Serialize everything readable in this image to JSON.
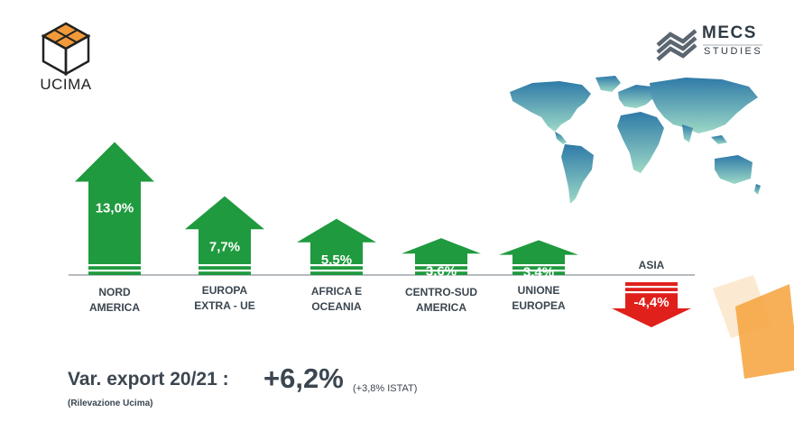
{
  "brand": {
    "ucima": "UCIMA",
    "mecs_title": "MECS",
    "mecs_sub": "STUDIES"
  },
  "colors": {
    "positive": "#1f9a3e",
    "negative": "#e0201b",
    "text": "#3b4650",
    "map_top": "#2f7aa8",
    "map_bottom": "#9dd9c6",
    "accent_orange": "#f6a23b"
  },
  "chart_data": {
    "type": "bar",
    "title": "",
    "xlabel": "",
    "ylabel": "",
    "ylim": [
      -4.4,
      13.0
    ],
    "categories": [
      [
        "NORD",
        "AMERICA"
      ],
      [
        "EUROPA",
        "EXTRA - UE"
      ],
      [
        "AFRICA E",
        "OCEANIA"
      ],
      [
        "CENTRO-SUD",
        "AMERICA"
      ],
      [
        "UNIONE",
        "EUROPEA"
      ],
      [
        "ASIA"
      ]
    ],
    "values": [
      13.0,
      7.7,
      5.5,
      3.6,
      3.4,
      -4.4
    ],
    "value_labels": [
      "13,0%",
      "7,7%",
      "5,5%",
      "3,6%",
      "3,4%",
      "-4,4%"
    ]
  },
  "summary": {
    "label": "Var. export 20/21 :",
    "value": "+6,2%",
    "note": "(+3,8% ISTAT)",
    "source": "(Rilevazione Ucima)"
  }
}
